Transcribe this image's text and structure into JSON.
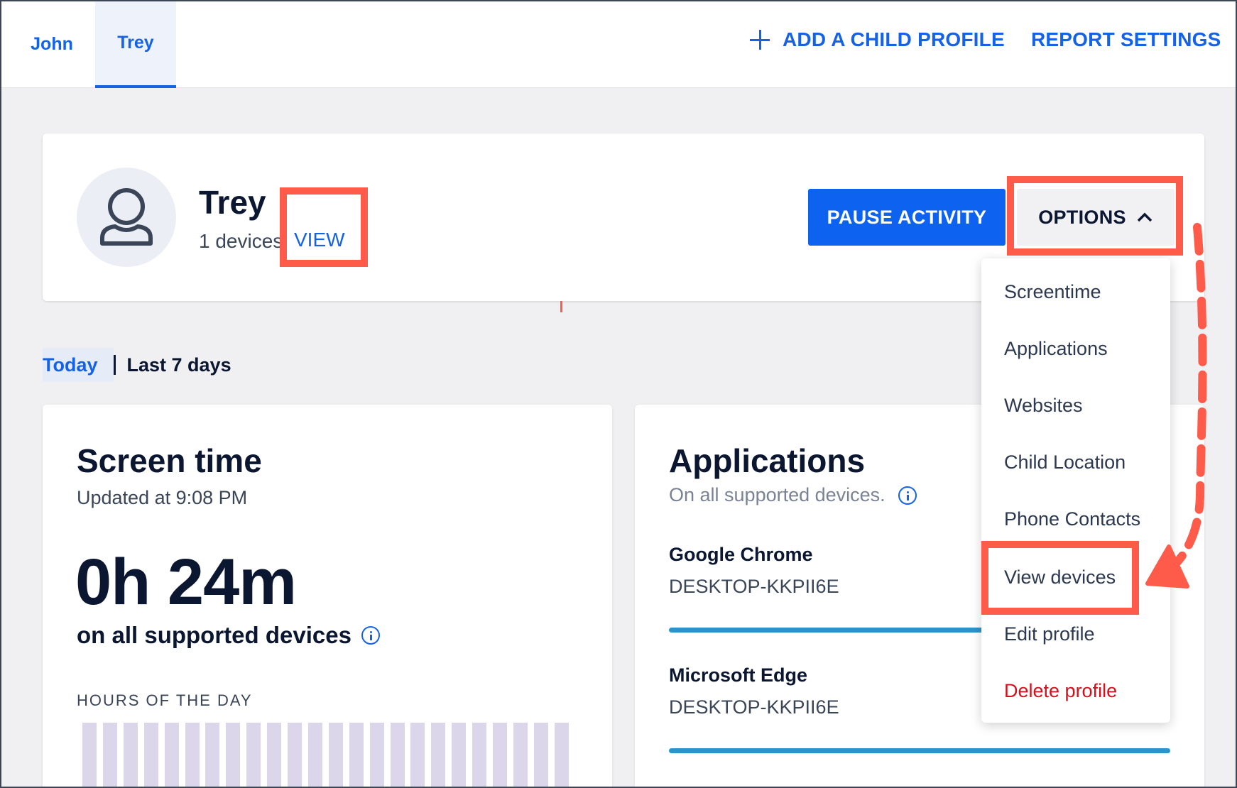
{
  "tabs": [
    {
      "label": "John"
    },
    {
      "label": "Trey"
    }
  ],
  "nav": {
    "add_child": "ADD A CHILD PROFILE",
    "report_settings": "REPORT SETTINGS"
  },
  "profile": {
    "name": "Trey",
    "devices": "1 devices",
    "view": "VIEW",
    "pause": "PAUSE ACTIVITY",
    "options": "OPTIONS"
  },
  "range": {
    "today": "Today",
    "last7": "Last 7 days"
  },
  "screen_time": {
    "title": "Screen time",
    "updated": "Updated at 9:08 PM",
    "total": "0h 24m",
    "subtitle": "on all supported devices",
    "hours_label": "HOURS OF THE DAY"
  },
  "applications": {
    "title": "Applications",
    "subtitle": "On all supported devices.",
    "items": [
      {
        "name": "Google Chrome",
        "device": "DESKTOP-KKPII6E"
      },
      {
        "name": "Microsoft Edge",
        "device": "DESKTOP-KKPII6E"
      }
    ]
  },
  "options_menu": {
    "items": [
      {
        "label": "Screentime"
      },
      {
        "label": "Applications"
      },
      {
        "label": "Websites"
      },
      {
        "label": "Child Location"
      },
      {
        "label": "Phone Contacts"
      },
      {
        "label": "View devices"
      },
      {
        "label": "Edit profile"
      },
      {
        "label": "Delete profile"
      }
    ]
  },
  "colors": {
    "accent": "#1463e6",
    "highlight": "#fe5b4a",
    "danger": "#d4101c",
    "app_bar": "#2b95c9"
  }
}
